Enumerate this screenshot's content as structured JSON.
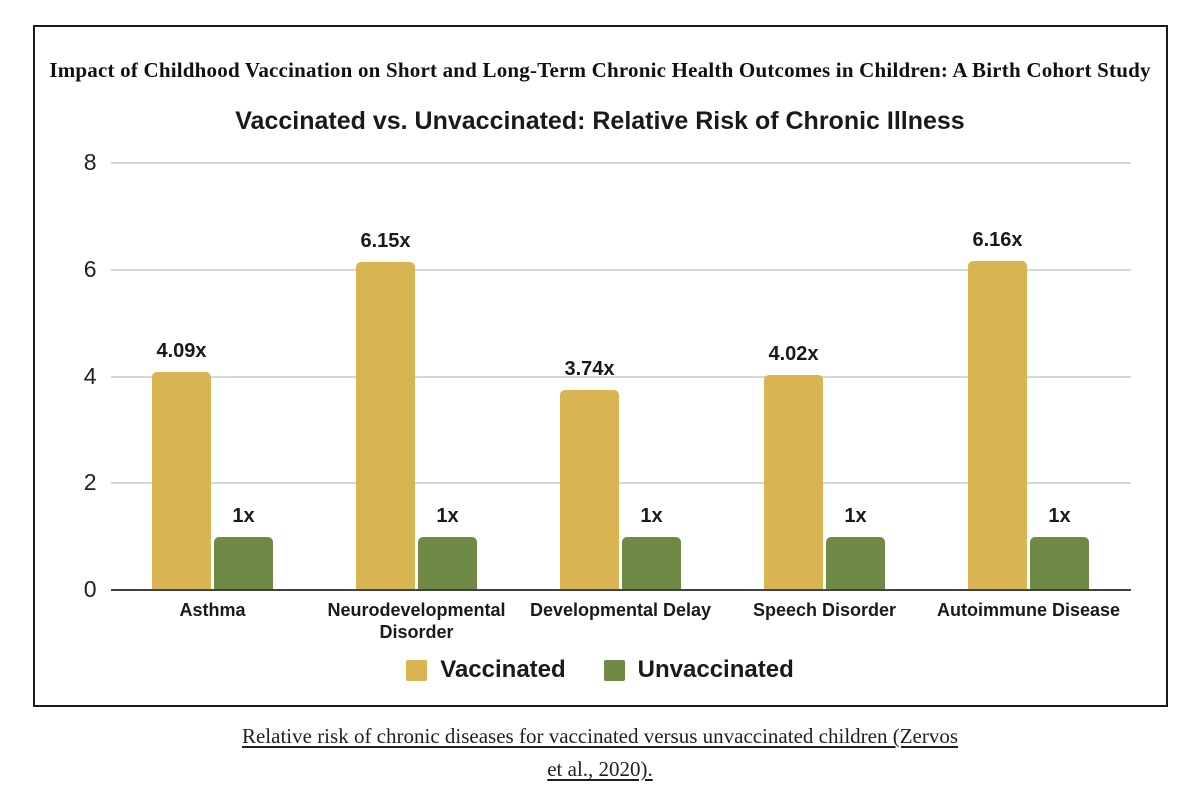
{
  "figure": {
    "study_title": "Impact of Childhood Vaccination on Short and Long-Term Chronic Health Outcomes in Children: A Birth Cohort Study",
    "caption_line1": "Relative risk of chronic diseases for vaccinated versus unvaccinated children (Zervos",
    "caption_line2": "et al., 2020)."
  },
  "chart_data": {
    "type": "bar",
    "title": "Vaccinated vs. Unvaccinated: Relative Risk of Chronic Illness",
    "categories": [
      "Asthma",
      "Neurodevelopmental Disorder",
      "Developmental Delay",
      "Speech Disorder",
      "Autoimmune Disease"
    ],
    "series": [
      {
        "name": "Vaccinated",
        "color": "#d9b452",
        "values": [
          4.09,
          6.15,
          3.74,
          4.02,
          6.16
        ],
        "value_labels": [
          "4.09x",
          "6.15x",
          "3.74x",
          "4.02x",
          "6.16x"
        ]
      },
      {
        "name": "Unvaccinated",
        "color": "#6f8a47",
        "values": [
          1,
          1,
          1,
          1,
          1
        ],
        "value_labels": [
          "1x",
          "1x",
          "1x",
          "1x",
          "1x"
        ]
      }
    ],
    "xlabel": "",
    "ylabel": "",
    "ylim": [
      0,
      8
    ],
    "yticks": [
      "0",
      "2",
      "4",
      "6",
      "8"
    ],
    "grid": true,
    "legend_position": "bottom",
    "colors": {
      "gridline": "#d6d6d6",
      "axis_line": "#424242",
      "text": "#1a1a1a"
    }
  }
}
